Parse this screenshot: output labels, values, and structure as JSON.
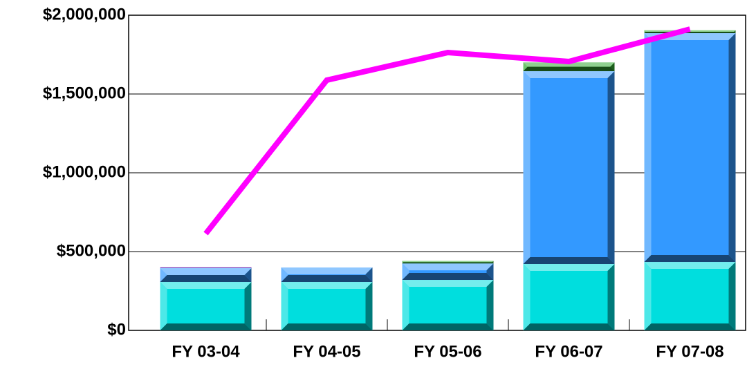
{
  "chart_data": {
    "type": "bar",
    "categories": [
      "FY 03-04",
      "FY 04-05",
      "FY 05-06",
      "FY 06-07",
      "FY 07-08"
    ],
    "series": [
      {
        "color": "#00dede",
        "values": [
          307000,
          307000,
          320000,
          421000,
          434000
        ]
      },
      {
        "color": "#3399ff",
        "values": [
          88000,
          92000,
          105000,
          1224000,
          1452000
        ]
      },
      {
        "color": "#9933ff",
        "values": [
          5000,
          0,
          0,
          0,
          0
        ]
      },
      {
        "color": "#33aa33",
        "values": [
          0,
          0,
          15000,
          55000,
          18000
        ]
      },
      {
        "type": "line",
        "color": "#ff00ff",
        "values": [
          614000,
          1588000,
          1763000,
          1706000,
          1912000
        ]
      }
    ],
    "ylim": [
      0,
      2000000
    ],
    "yticks": [
      {
        "value": 0,
        "label": "$0"
      },
      {
        "value": 500000,
        "label": "$500,000"
      },
      {
        "value": 1000000,
        "label": "$1,000,000"
      },
      {
        "value": 1500000,
        "label": "$1,500,000"
      },
      {
        "value": 2000000,
        "label": "$2,000,000"
      }
    ],
    "grid": true
  }
}
